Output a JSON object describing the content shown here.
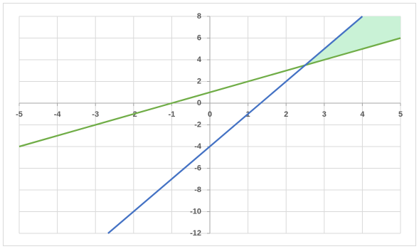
{
  "chart_data": {
    "type": "line",
    "xlim": [
      -5,
      5
    ],
    "xticks": [
      -5,
      -4,
      -3,
      -2,
      -1,
      0,
      1,
      2,
      3,
      4,
      5
    ],
    "ylim": [
      -12,
      8
    ],
    "yticks": [
      -12,
      -10,
      -8,
      -6,
      -4,
      -2,
      0,
      2,
      4,
      6,
      8
    ],
    "grid": true,
    "region": {
      "color": "#c9f2d6",
      "x": [
        2.5,
        4,
        5,
        5
      ],
      "values": [
        3.5,
        8,
        8,
        6
      ]
    },
    "series": [
      {
        "color": "#70ad47",
        "x": [
          -5,
          5
        ],
        "values": [
          -4,
          6
        ]
      },
      {
        "color": "#4472c4",
        "x": [
          -2.67,
          4
        ],
        "values": [
          -12,
          8
        ]
      }
    ]
  }
}
